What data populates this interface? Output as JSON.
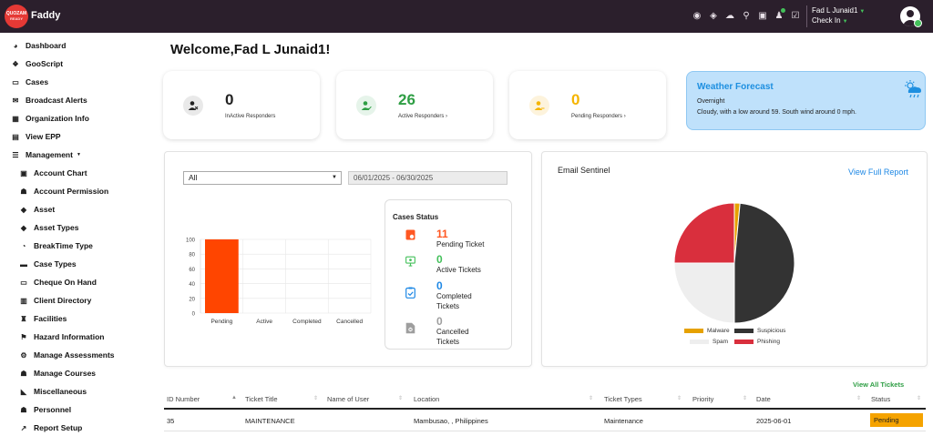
{
  "app": {
    "logo_top": "QUOZAM",
    "logo_bottom": "READY",
    "name": "Faddy"
  },
  "header": {
    "icons": [
      "disk-icon",
      "tag-icon",
      "cloud-upload-icon",
      "search-icon",
      "chat-icon",
      "bell-icon",
      "checklist-icon"
    ],
    "user_name": "Fad L Junaid1",
    "status": "Check In"
  },
  "sidebar": {
    "items": [
      {
        "label": "Dashboard",
        "icon": "dashboard-icon",
        "glyph": "◕"
      },
      {
        "label": "GooScript",
        "icon": "script-icon",
        "glyph": "❖"
      },
      {
        "label": "Cases",
        "icon": "cases-icon",
        "glyph": "▭"
      },
      {
        "label": "Broadcast Alerts",
        "icon": "broadcast-icon",
        "glyph": "✉"
      },
      {
        "label": "Organization Info",
        "icon": "building-icon",
        "glyph": "▦"
      },
      {
        "label": "View EPP",
        "icon": "document-icon",
        "glyph": "▤"
      },
      {
        "label": "Management",
        "icon": "management-icon",
        "glyph": "☰"
      }
    ],
    "sub_items": [
      {
        "label": "Account Chart",
        "icon": "chart-icon",
        "glyph": "▣"
      },
      {
        "label": "Account Permission",
        "icon": "users-icon",
        "glyph": "☗"
      },
      {
        "label": "Asset",
        "icon": "asset-icon",
        "glyph": "◆"
      },
      {
        "label": "Asset Types",
        "icon": "asset-types-icon",
        "glyph": "◆"
      },
      {
        "label": "BreakTime Type",
        "icon": "clock-icon",
        "glyph": "◔"
      },
      {
        "label": "Case Types",
        "icon": "case-types-icon",
        "glyph": "▬"
      },
      {
        "label": "Cheque On Hand",
        "icon": "cheque-icon",
        "glyph": "▭"
      },
      {
        "label": "Client Directory",
        "icon": "directory-icon",
        "glyph": "▥"
      },
      {
        "label": "Facilities",
        "icon": "facilities-icon",
        "glyph": "♜"
      },
      {
        "label": "Hazard Information",
        "icon": "hazard-icon",
        "glyph": "⚑"
      },
      {
        "label": "Manage Assessments",
        "icon": "assessment-icon",
        "glyph": "⚙"
      },
      {
        "label": "Manage Courses",
        "icon": "courses-icon",
        "glyph": "☗"
      },
      {
        "label": "Miscellaneous",
        "icon": "misc-icon",
        "glyph": "◣"
      },
      {
        "label": "Personnel",
        "icon": "personnel-icon",
        "glyph": "☗"
      },
      {
        "label": "Report Setup",
        "icon": "report-icon",
        "glyph": "↗"
      }
    ]
  },
  "welcome": "Welcome,Fad L Junaid1!",
  "stats": [
    {
      "value": "0",
      "label": "InActive Responders",
      "icon": "user-x-icon",
      "color": "#222222",
      "icon_bg": "#e9e9e9"
    },
    {
      "value": "26",
      "label": "Active Responders",
      "icon": "user-check-icon",
      "color": "#2e9e44",
      "icon_bg": "#e6f4ea"
    },
    {
      "value": "0",
      "label": "Pending Responders",
      "icon": "user-pending-icon",
      "color": "#f5b400",
      "icon_bg": "#fdf3dc"
    }
  ],
  "weather": {
    "title": "Weather Forecast",
    "period": "Overnight",
    "description": "Cloudy, with a low around 59. South wind around 0 mph."
  },
  "filter": {
    "selected": "All",
    "date_range": "06/01/2025 - 06/30/2025"
  },
  "chart_data": {
    "type": "bar",
    "categories": [
      "Pending",
      "Active",
      "Completed",
      "Cancelled"
    ],
    "values": [
      100,
      0,
      0,
      0
    ],
    "title": "",
    "xlabel": "",
    "ylabel": "",
    "ylim": [
      0,
      100
    ],
    "yticks": [
      0,
      20,
      40,
      60,
      80,
      100
    ],
    "bar_color": "#ff4500",
    "grid": true
  },
  "cases_status": {
    "title": "Cases Status",
    "items": [
      {
        "value": "11",
        "label_line1": "Pending Ticket",
        "label_line2": "",
        "color": "#ff5722",
        "icon": "pending-ticket-icon"
      },
      {
        "value": "0",
        "label_line1": "Active Tickets",
        "label_line2": "",
        "color": "#43c05a",
        "icon": "active-ticket-icon"
      },
      {
        "value": "0",
        "label_line1": "Completed",
        "label_line2": "Tickets",
        "color": "#1e88e5",
        "icon": "completed-ticket-icon"
      },
      {
        "value": "0",
        "label_line1": "Cancelled",
        "label_line2": "Tickets",
        "color": "#9e9e9e",
        "icon": "cancelled-ticket-icon"
      }
    ]
  },
  "sentinel": {
    "title": "Email Sentinel",
    "link": "View Full Report",
    "chart_data": {
      "type": "pie",
      "labels": [
        "Malware",
        "Suspicious",
        "Spam",
        "Phishing"
      ],
      "values": [
        1.5,
        48.5,
        25,
        25
      ],
      "colors": [
        "#e6a100",
        "#333333",
        "#eeeeee",
        "#d92f3d"
      ]
    }
  },
  "table": {
    "view_all": "View All Tickets",
    "headers": [
      "ID Number",
      "Ticket Title",
      "Name of User",
      "Location",
      "Ticket Types",
      "Priority",
      "Date",
      "Status"
    ],
    "rows": [
      [
        "35",
        "MAINTENANCE",
        "",
        "Mambusao, , Philippines",
        "Maintenance",
        "",
        "2025-06-01",
        "Pending"
      ]
    ],
    "pending_color": "#f5a300"
  }
}
